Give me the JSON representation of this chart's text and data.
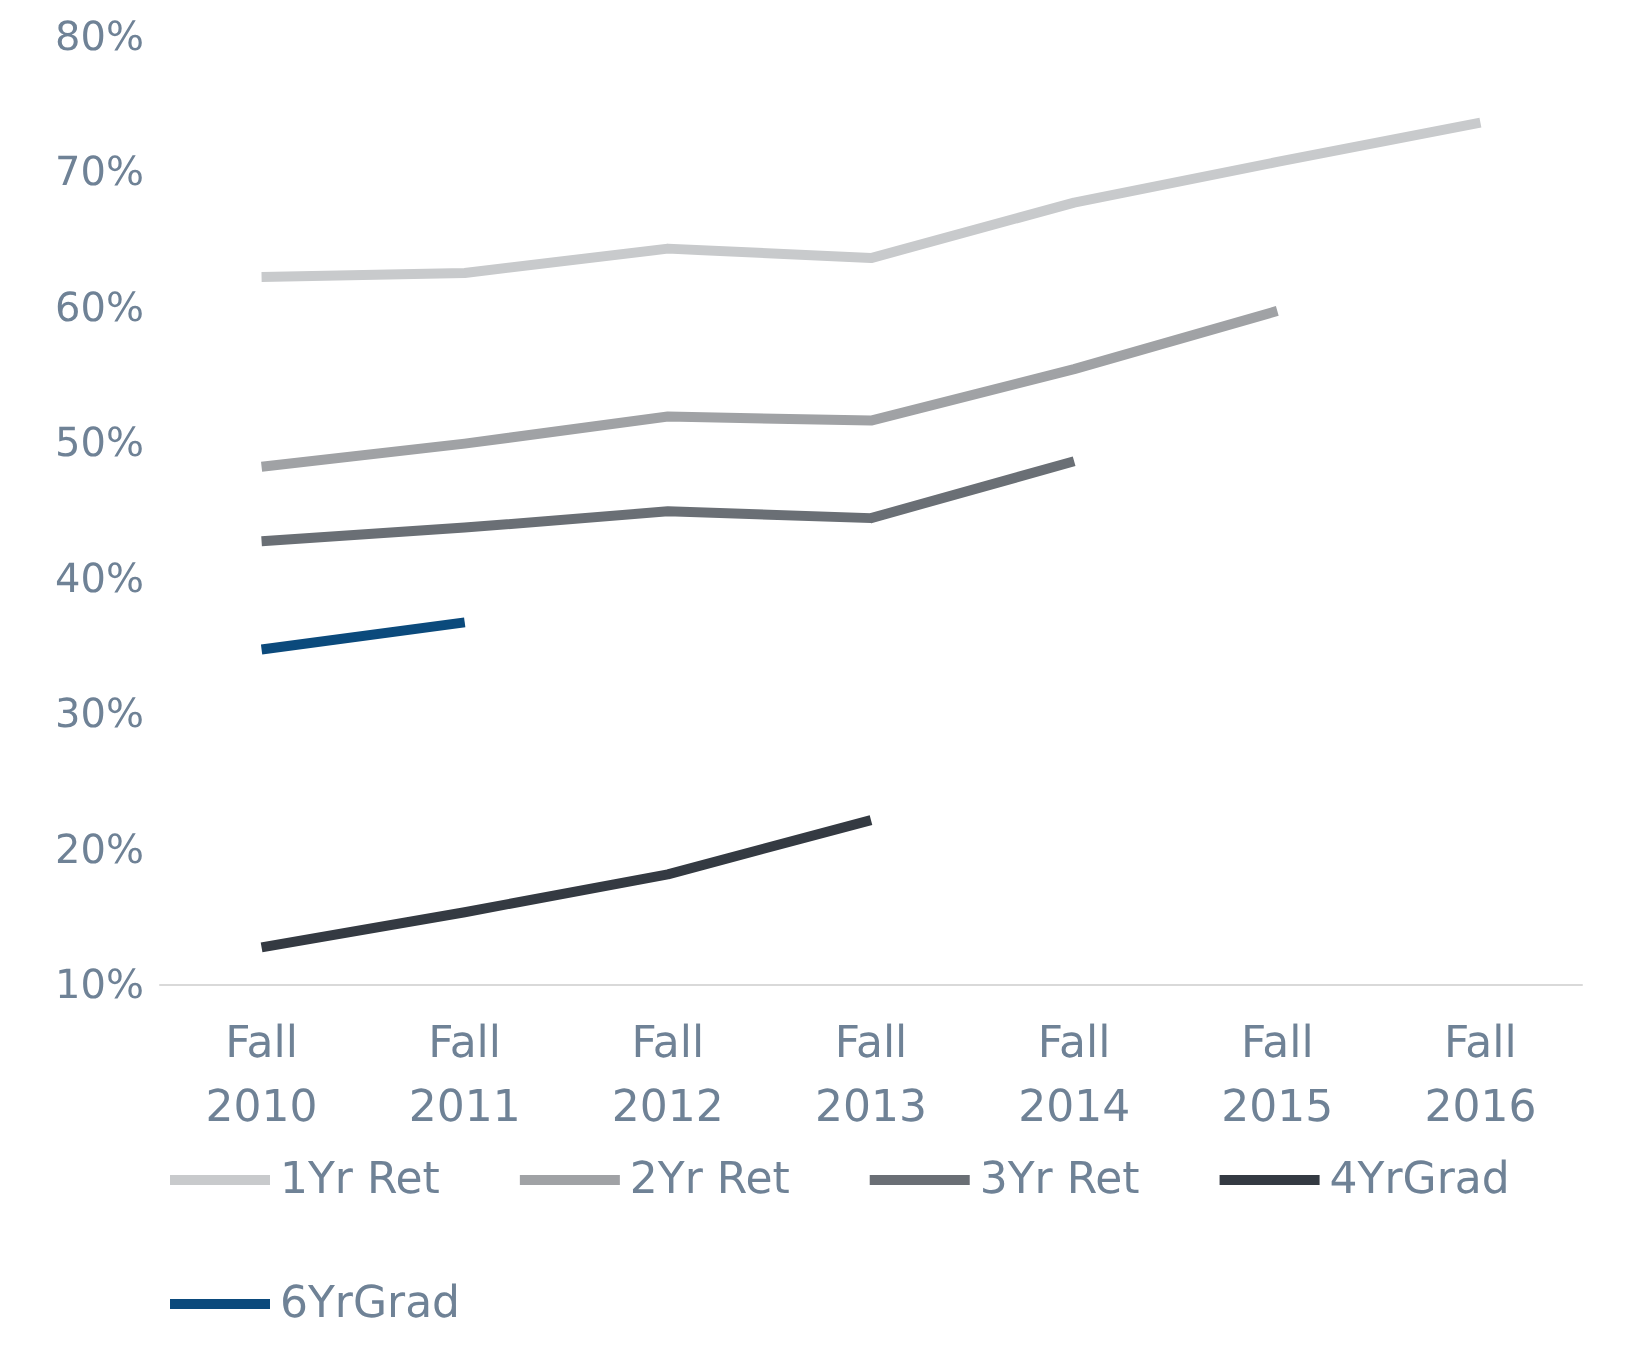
{
  "chart_data": {
    "type": "line",
    "categories": [
      "Fall 2010",
      "Fall 2011",
      "Fall 2012",
      "Fall 2013",
      "Fall 2014",
      "Fall 2015",
      "Fall 2016"
    ],
    "series": [
      {
        "name": "1Yr Ret",
        "color": "#c8cacc",
        "values": [
          62.2,
          62.5,
          64.3,
          63.6,
          67.7,
          70.7,
          73.6
        ]
      },
      {
        "name": "2Yr Ret",
        "color": "#a0a2a5",
        "values": [
          48.2,
          49.9,
          51.9,
          51.6,
          55.4,
          59.7,
          null
        ]
      },
      {
        "name": "3Yr Ret",
        "color": "#6a6f75",
        "values": [
          42.7,
          43.7,
          44.9,
          44.4,
          48.6,
          null,
          null
        ]
      },
      {
        "name": "4YrGrad",
        "color": "#343a42",
        "values": [
          12.7,
          15.3,
          18.1,
          22.1,
          null,
          null,
          null
        ]
      },
      {
        "name": "6YrGrad",
        "color": "#0b4a7c",
        "values": [
          34.7,
          36.7,
          null,
          null,
          null,
          null,
          null
        ]
      }
    ],
    "ylim": [
      10,
      80
    ],
    "yticks": [
      {
        "value": 10,
        "label": "10%"
      },
      {
        "value": 20,
        "label": "20%"
      },
      {
        "value": 30,
        "label": "30%"
      },
      {
        "value": 40,
        "label": "40%"
      },
      {
        "value": 50,
        "label": "50%"
      },
      {
        "value": 60,
        "label": "60%"
      },
      {
        "value": 70,
        "label": "70%"
      },
      {
        "value": 80,
        "label": "80%"
      }
    ],
    "grid": false,
    "legend": "bottom",
    "marker": "none",
    "line_style": "solid"
  }
}
